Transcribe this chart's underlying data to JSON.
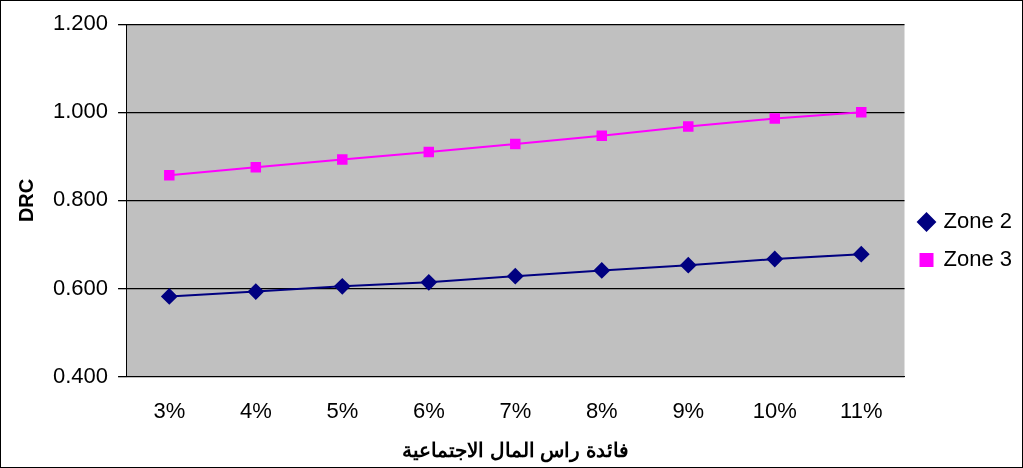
{
  "chart_data": {
    "type": "line",
    "xlabel": "فائدة راس المال الاجتماعية",
    "ylabel": "DRC",
    "categories": [
      "3%",
      "4%",
      "5%",
      "6%",
      "7%",
      "8%",
      "9%",
      "10%",
      "11%"
    ],
    "series": [
      {
        "name": "Zone 2",
        "color": "#000080",
        "marker": "diamond",
        "values": [
          0.582,
          0.593,
          0.605,
          0.614,
          0.628,
          0.641,
          0.653,
          0.667,
          0.678
        ]
      },
      {
        "name": "Zone 3",
        "color": "#ff00ff",
        "marker": "square",
        "values": [
          0.857,
          0.875,
          0.893,
          0.91,
          0.928,
          0.947,
          0.968,
          0.986,
          1.0
        ]
      }
    ],
    "ylim": [
      0.4,
      1.2
    ],
    "yticks": [
      {
        "value": 0.4,
        "label": "0.400"
      },
      {
        "value": 0.6,
        "label": "0.600"
      },
      {
        "value": 0.8,
        "label": "0.800"
      },
      {
        "value": 1.0,
        "label": "1.000"
      },
      {
        "value": 1.2,
        "label": "1.200"
      }
    ],
    "grid": "y",
    "legend": "right",
    "line_style": "solid"
  }
}
